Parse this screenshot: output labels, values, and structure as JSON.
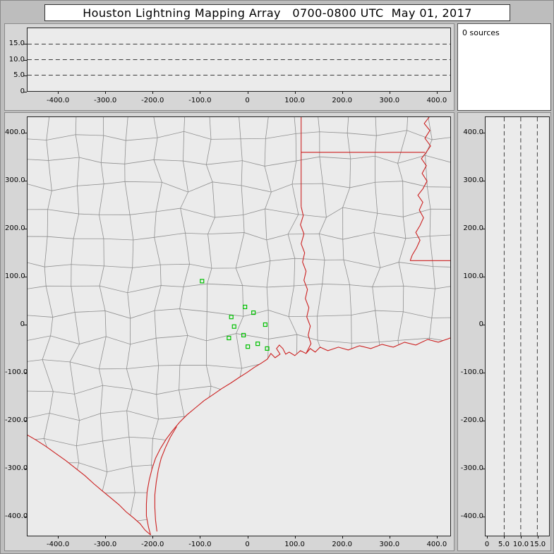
{
  "title": "Houston Lightning Mapping Array   0700-0800 UTC  May 01, 2017",
  "sources_panel": {
    "label": "0 sources"
  },
  "colors": {
    "border_red": "#cc2020",
    "station_green": "#00c000",
    "county_gray": "#8f8f8f",
    "plot_bg": "#ebebeb",
    "panel_bg": "#d6d6d6",
    "window_bg": "#bdbdbd",
    "title_bg": "#ffffff"
  },
  "chart_data": [
    {
      "id": "altitude-vs-eastwest",
      "type": "scatter",
      "xlim": [
        -466,
        430
      ],
      "ylim": [
        0,
        20
      ],
      "xticks": [
        -400,
        -300,
        -200,
        -100,
        0,
        100,
        200,
        300,
        400
      ],
      "xtick_labels": [
        "-400.0",
        "-300.0",
        "-200.0",
        "-100.0",
        "0",
        "100.0",
        "200.0",
        "300.0",
        "400.0"
      ],
      "yticks": [
        15,
        10,
        5,
        0
      ],
      "ytick_labels": [
        "15.0",
        "10.0",
        "5.0",
        "0"
      ],
      "dashed_gridlines_alt_km": [
        5,
        10,
        15
      ],
      "points": []
    },
    {
      "id": "plan-view-map",
      "type": "scatter",
      "xlim": [
        -466,
        430
      ],
      "ylim": [
        -437,
        441
      ],
      "xticks": [
        -400,
        -300,
        -200,
        -100,
        0,
        100,
        200,
        300,
        400
      ],
      "xtick_labels": [
        "-400.0",
        "-300.0",
        "-200.0",
        "-100.0",
        "0",
        "100.0",
        "200.0",
        "300.0",
        "400.0"
      ],
      "yticks": [
        400,
        300,
        200,
        100,
        0,
        -100,
        -200,
        -300,
        -400
      ],
      "ytick_labels": [
        "400.0",
        "300.0",
        "200.0",
        "100.0",
        "0",
        "-100.0",
        "-200.0",
        "-300.0",
        "-400.0"
      ],
      "station_markers_km": [
        [
          -96,
          91
        ],
        [
          -5,
          37
        ],
        [
          -34,
          16
        ],
        [
          13,
          25
        ],
        [
          -28,
          -4
        ],
        [
          -39,
          -28
        ],
        [
          -8,
          -22
        ],
        [
          38,
          0
        ],
        [
          1,
          -46
        ],
        [
          22,
          -40
        ],
        [
          42,
          -50
        ]
      ],
      "points": []
    },
    {
      "id": "altitude-vs-northsouth",
      "type": "scatter",
      "xlim": [
        -0.6,
        18.6
      ],
      "ylim": [
        -437,
        441
      ],
      "xticks": [
        0,
        5,
        10,
        15
      ],
      "xtick_labels": [
        "0",
        "5.0",
        "10.0",
        "15.0"
      ],
      "yticks": [
        400,
        300,
        200,
        100,
        0,
        -100,
        -200,
        -300,
        -400
      ],
      "ytick_labels": [
        "400.0",
        "300.0",
        "200.0",
        "100.0",
        "0",
        "-100.0",
        "-200.0",
        "-300.0",
        "-400.0"
      ],
      "dashed_gridlines_alt_km": [
        5,
        10,
        15
      ],
      "points": []
    }
  ]
}
